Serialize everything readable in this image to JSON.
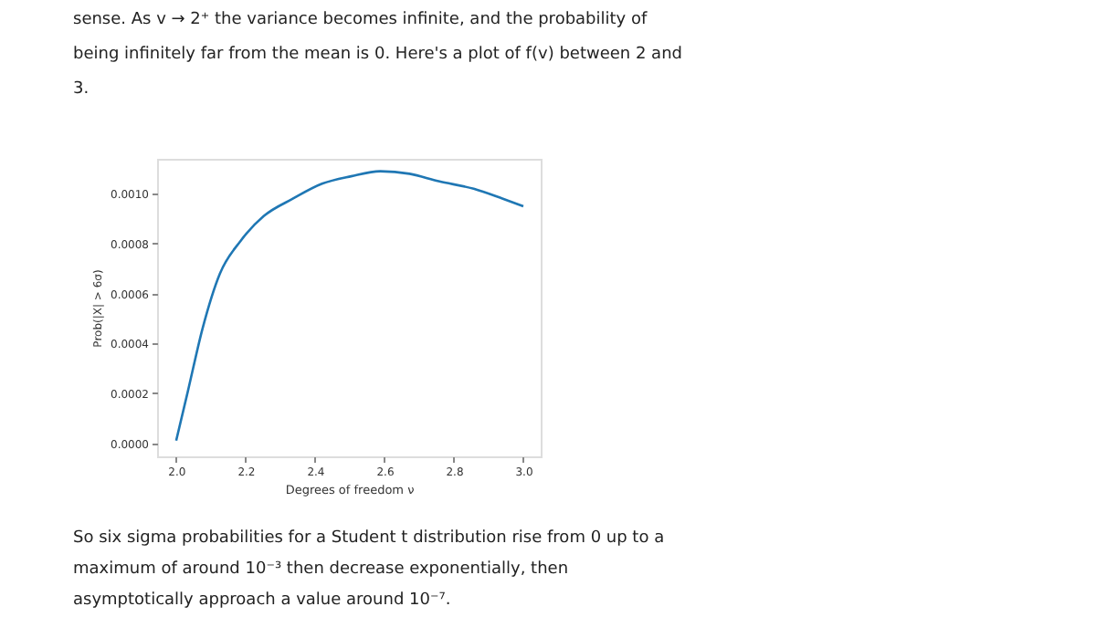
{
  "chart_data": {
    "type": "line",
    "xlabel": "Degrees of freedom ν",
    "ylabel": "Prob(|X| > 6σ)",
    "x": [
      2.0,
      2.034,
      2.076,
      2.126,
      2.185,
      2.252,
      2.336,
      2.42,
      2.504,
      2.588,
      2.672,
      2.756,
      2.857,
      2.941,
      3.0
    ],
    "series": [
      {
        "color": "#1f77b4",
        "values": [
          1e-05,
          0.00021,
          0.00046,
          0.00068,
          0.00081,
          0.00091,
          0.00098,
          0.00104,
          0.00107,
          0.00109,
          0.00108,
          0.00105,
          0.00102,
          0.00098,
          0.00095
        ]
      }
    ],
    "xlim": [
      1.945,
      3.05
    ],
    "ylim": [
      -5.3e-05,
      0.00114
    ],
    "xticks": [
      {
        "value": 2.0,
        "label": "2.0"
      },
      {
        "value": 2.2,
        "label": "2.2"
      },
      {
        "value": 2.4,
        "label": "2.4"
      },
      {
        "value": 2.6,
        "label": "2.6"
      },
      {
        "value": 2.8,
        "label": "2.8"
      },
      {
        "value": 3.0,
        "label": "3.0"
      }
    ],
    "yticks": [
      {
        "value": 0,
        "label": "0.0000"
      },
      {
        "value": 0.0002,
        "label": "0.0002"
      },
      {
        "value": 0.0004,
        "label": "0.0004"
      },
      {
        "value": 0.0006,
        "label": "0.0006"
      },
      {
        "value": 0.0008,
        "label": "0.0008"
      },
      {
        "value": 0.001,
        "label": "0.0010"
      }
    ],
    "grid": false,
    "line_style": "solid",
    "marker": "none",
    "annotations": [
      "sense. As v → 2⁺ the variance becomes infinite, and the probability of",
      "being infinitely far from the mean is 0. Here's a plot of f(v) between 2 and",
      "3.",
      "So six sigma probabilities for a Student t distribution rise from 0 up to a",
      "maximum of around 10⁻³ then decrease exponentially, then",
      "asymptotically approach a value around 10⁻⁷."
    ]
  }
}
